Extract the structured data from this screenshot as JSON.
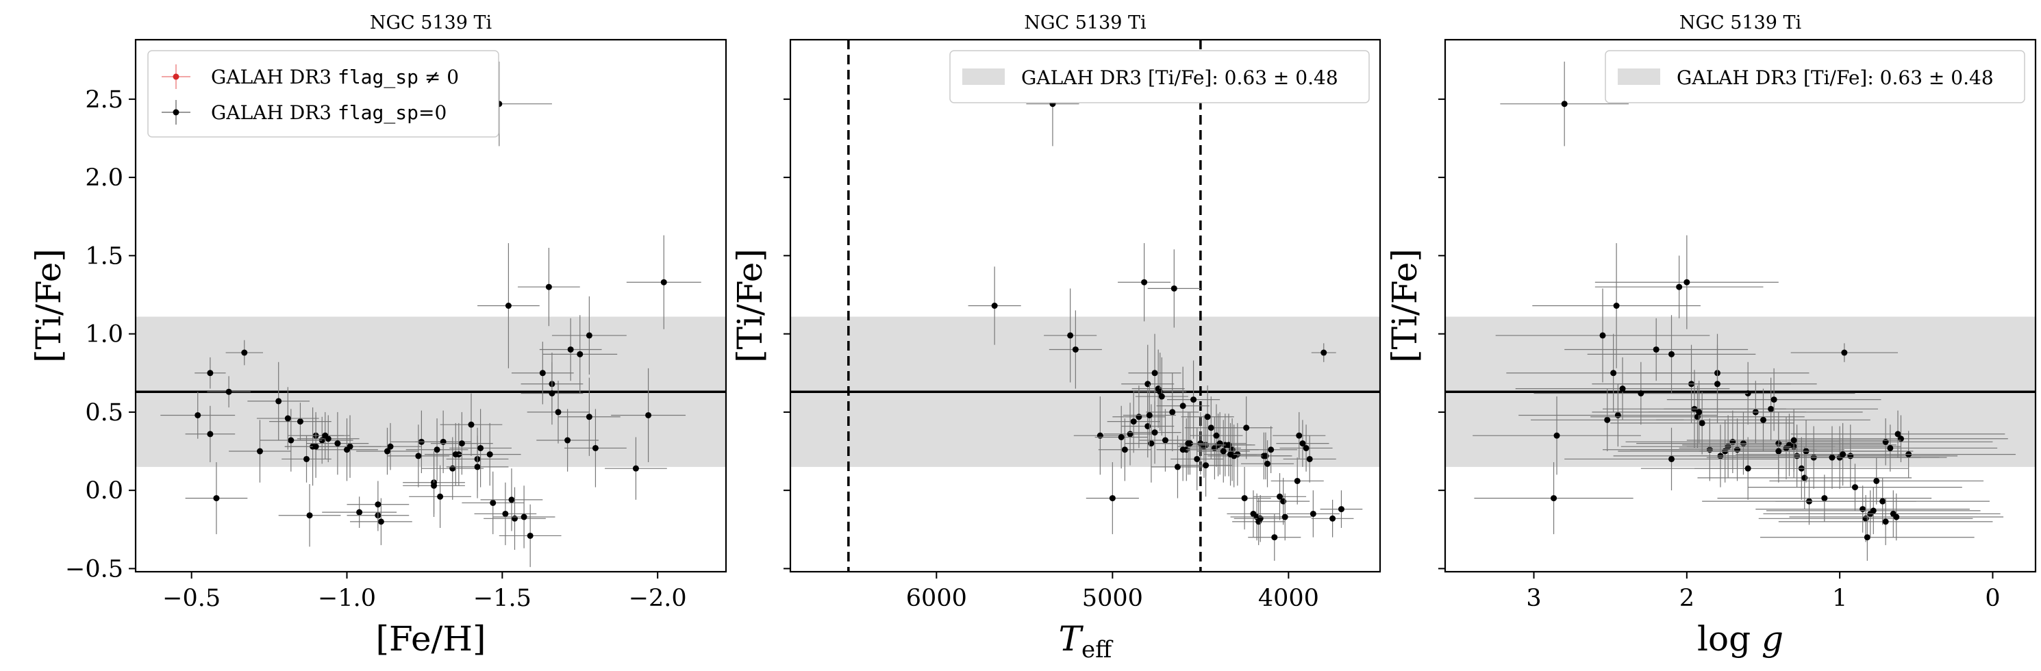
{
  "chart_data": [
    {
      "type": "scatter",
      "title": "NGC 5139 Ti",
      "xlabel": "[Fe/H]",
      "ylabel": "[Ti/Fe]",
      "xlim": [
        -0.32,
        -2.22
      ],
      "ylim": [
        -0.52,
        2.88
      ],
      "xticks": [
        -0.5,
        -1.0,
        -1.5,
        -2.0
      ],
      "xtick_labels": [
        "−0.5",
        "−1.0",
        "−1.5",
        "−2.0"
      ],
      "yticks": [
        -0.5,
        0.0,
        0.5,
        1.0,
        1.5,
        2.0,
        2.5
      ],
      "ytick_labels": [
        "−0.5",
        "0.0",
        "0.5",
        "1.0",
        "1.5",
        "2.0",
        "2.5"
      ],
      "mean": 0.63,
      "std": 0.48,
      "legend_position": "top-left",
      "legend": [
        "GALAH DR3 flag_sp ≠ 0",
        "GALAH DR3 flag_sp=0"
      ],
      "legend_colors": [
        "#d62728",
        "#000000"
      ],
      "series": [
        {
          "name": "GALAH DR3 flag_sp=0",
          "x": [
            -0.67,
            -0.56,
            -0.58,
            -0.62,
            -0.56,
            -0.52,
            -0.85,
            -0.92,
            -0.87,
            -0.94,
            -0.9,
            -0.93,
            -1.01,
            -0.78,
            -0.89,
            -1.0,
            -1.04,
            -1.1,
            -1.11,
            -1.24,
            -1.14,
            -1.13,
            -1.1,
            -1.31,
            -1.4,
            -1.37,
            -1.34,
            -1.28,
            -1.23,
            -1.29,
            -1.28,
            -1.3,
            -1.36,
            -1.35,
            -1.42,
            -1.46,
            -1.42,
            -1.47,
            -1.51,
            -1.59,
            -1.53,
            -1.54,
            -1.57,
            -1.66,
            -1.63,
            -1.66,
            -1.68,
            -1.71,
            -1.72,
            -1.78,
            -1.8,
            -1.93,
            -1.97,
            -2.02,
            -1.75,
            -1.78,
            -1.65,
            -1.52,
            -1.49,
            -1.43,
            -0.82,
            -0.72,
            -0.9,
            -0.97,
            -0.81,
            -0.88
          ],
          "y": [
            0.88,
            0.75,
            -0.05,
            0.63,
            0.36,
            0.48,
            0.44,
            0.32,
            0.2,
            0.33,
            0.35,
            0.35,
            0.28,
            0.57,
            0.28,
            0.26,
            -0.14,
            -0.16,
            -0.2,
            0.31,
            0.28,
            0.25,
            -0.09,
            0.31,
            0.42,
            0.3,
            0.14,
            0.05,
            0.22,
            0.26,
            0.03,
            -0.04,
            0.23,
            0.23,
            0.2,
            0.23,
            0.15,
            -0.08,
            -0.15,
            -0.29,
            -0.06,
            -0.18,
            -0.17,
            0.68,
            0.75,
            0.62,
            0.5,
            0.32,
            0.9,
            0.47,
            0.27,
            0.14,
            0.48,
            1.33,
            0.87,
            0.99,
            1.3,
            1.18,
            2.47,
            0.27,
            0.32,
            0.25,
            0.28,
            0.3,
            0.46,
            -0.16
          ],
          "xerr": [
            0.06,
            0.05,
            0.1,
            0.07,
            0.08,
            0.12,
            0.1,
            0.1,
            0.08,
            0.1,
            0.09,
            0.08,
            0.1,
            0.1,
            0.09,
            0.1,
            0.12,
            0.1,
            0.1,
            0.1,
            0.1,
            0.1,
            0.1,
            0.09,
            0.1,
            0.1,
            0.1,
            0.1,
            0.1,
            0.1,
            0.1,
            0.1,
            0.1,
            0.1,
            0.1,
            0.1,
            0.1,
            0.1,
            0.1,
            0.1,
            0.1,
            0.1,
            0.1,
            0.1,
            0.1,
            0.1,
            0.1,
            0.1,
            0.1,
            0.1,
            0.1,
            0.1,
            0.12,
            0.12,
            0.12,
            0.12,
            0.1,
            0.1,
            0.17,
            0.1,
            0.1,
            0.1,
            0.1,
            0.1,
            0.1,
            0.1
          ],
          "yerr": [
            0.08,
            0.1,
            0.23,
            0.1,
            0.18,
            0.15,
            0.12,
            0.15,
            0.15,
            0.15,
            0.15,
            0.15,
            0.2,
            0.25,
            0.25,
            0.2,
            0.1,
            0.1,
            0.15,
            0.2,
            0.15,
            0.15,
            0.15,
            0.2,
            0.2,
            0.2,
            0.2,
            0.2,
            0.2,
            0.2,
            0.2,
            0.2,
            0.2,
            0.2,
            0.2,
            0.2,
            0.2,
            0.2,
            0.2,
            0.2,
            0.2,
            0.2,
            0.2,
            0.2,
            0.2,
            0.2,
            0.2,
            0.2,
            0.2,
            0.25,
            0.25,
            0.2,
            0.3,
            0.3,
            0.25,
            0.25,
            0.25,
            0.4,
            0.27,
            0.25,
            0.2,
            0.2,
            0.2,
            0.2,
            0.2,
            0.2
          ],
          "color": "#000000"
        },
        {
          "name": "GALAH DR3 flag_sp ≠ 0",
          "x": [],
          "y": [],
          "color": "#d62728"
        }
      ]
    },
    {
      "type": "scatter",
      "title": "NGC 5139 Ti",
      "xlabel": "T_eff",
      "ylabel": "[Ti/Fe]",
      "xlim": [
        6830,
        3480
      ],
      "ylim": [
        -0.52,
        2.88
      ],
      "xticks": [
        6000,
        5000,
        4000
      ],
      "xtick_labels": [
        "6000",
        "5000",
        "4000"
      ],
      "yticks": [
        -0.5,
        0.0,
        0.5,
        1.0,
        1.5,
        2.0,
        2.5
      ],
      "vlines": [
        6500,
        4500
      ],
      "mean": 0.63,
      "std": 0.48,
      "legend_position": "top-right",
      "legend": [
        "GALAH DR3 [Ti/Fe]: 0.63 ± 0.48"
      ],
      "legend_colors": [
        "#dddddd"
      ],
      "series": [
        {
          "name": "GALAH DR3 flag_sp=0",
          "x": [
            5670,
            5340,
            5240,
            5210,
            5070,
            5000,
            4820,
            4800,
            4800,
            4780,
            4760,
            4740,
            4730,
            4720,
            4660,
            4650,
            4600,
            4540,
            4500,
            4480,
            4470,
            4460,
            4440,
            4420,
            4400,
            4390,
            4360,
            4340,
            4320,
            4290,
            4250,
            4240,
            4200,
            4180,
            4170,
            4160,
            4140,
            4130,
            4120,
            4100,
            4080,
            4050,
            4030,
            4020,
            3950,
            3940,
            3920,
            3900,
            3880,
            3860,
            3800,
            3750,
            3700,
            4850,
            4880,
            4900,
            4930,
            4700,
            4630,
            4580,
            4560,
            4520,
            4470,
            4410,
            4310,
            4330,
            4370,
            4950,
            4790,
            4570,
            4600,
            4760
          ],
          "y": [
            1.18,
            2.47,
            0.99,
            0.9,
            0.35,
            -0.05,
            1.33,
            0.68,
            0.41,
            0.3,
            0.75,
            0.65,
            0.63,
            0.6,
            0.5,
            1.29,
            0.54,
            0.58,
            0.3,
            0.28,
            0.29,
            0.47,
            0.4,
            0.27,
            0.29,
            0.3,
            0.29,
            0.29,
            0.26,
            0.23,
            -0.05,
            0.4,
            -0.15,
            -0.17,
            -0.2,
            -0.18,
            0.22,
            0.22,
            0.17,
            0.26,
            -0.3,
            -0.04,
            -0.07,
            -0.17,
            0.06,
            0.35,
            0.3,
            0.27,
            0.2,
            -0.15,
            0.88,
            -0.18,
            -0.12,
            0.47,
            0.44,
            0.36,
            0.26,
            0.32,
            0.15,
            0.26,
            0.3,
            0.2,
            0.16,
            0.35,
            0.22,
            0.23,
            0.25,
            0.34,
            0.48,
            0.3,
            0.26,
            0.37
          ],
          "xerr": [
            150,
            150,
            150,
            150,
            150,
            150,
            150,
            150,
            150,
            150,
            150,
            150,
            150,
            150,
            150,
            150,
            150,
            150,
            150,
            150,
            150,
            150,
            150,
            150,
            150,
            150,
            150,
            150,
            150,
            150,
            150,
            150,
            150,
            150,
            150,
            150,
            150,
            150,
            150,
            150,
            150,
            150,
            150,
            150,
            150,
            150,
            150,
            150,
            150,
            150,
            70,
            120,
            120,
            150,
            150,
            150,
            150,
            150,
            150,
            150,
            150,
            150,
            150,
            150,
            150,
            150,
            150,
            150,
            150,
            150,
            150,
            150
          ],
          "yerr": [
            0.25,
            0.27,
            0.3,
            0.25,
            0.25,
            0.23,
            0.25,
            0.25,
            0.2,
            0.25,
            0.25,
            0.25,
            0.25,
            0.25,
            0.25,
            0.25,
            0.25,
            0.25,
            0.2,
            0.2,
            0.2,
            0.2,
            0.2,
            0.2,
            0.2,
            0.2,
            0.2,
            0.2,
            0.2,
            0.2,
            0.2,
            0.2,
            0.15,
            0.15,
            0.15,
            0.15,
            0.15,
            0.15,
            0.15,
            0.15,
            0.15,
            0.15,
            0.15,
            0.15,
            0.15,
            0.15,
            0.15,
            0.15,
            0.15,
            0.15,
            0.06,
            0.12,
            0.12,
            0.2,
            0.2,
            0.2,
            0.2,
            0.2,
            0.2,
            0.2,
            0.2,
            0.2,
            0.2,
            0.2,
            0.2,
            0.2,
            0.2,
            0.2,
            0.2,
            0.2,
            0.2,
            0.2
          ],
          "color": "#000000"
        }
      ]
    },
    {
      "type": "scatter",
      "title": "NGC 5139 Ti",
      "xlabel": "log g",
      "ylabel": "[Ti/Fe]",
      "xlim": [
        3.58,
        -0.28
      ],
      "ylim": [
        -0.52,
        2.88
      ],
      "xticks": [
        3,
        2,
        1,
        0
      ],
      "xtick_labels": [
        "3",
        "2",
        "1",
        "0"
      ],
      "yticks": [
        -0.5,
        0.0,
        0.5,
        1.0,
        1.5,
        2.0,
        2.5
      ],
      "mean": 0.63,
      "std": 0.48,
      "legend_position": "top-right",
      "legend": [
        "GALAH DR3 [Ti/Fe]: 0.63 ± 0.48"
      ],
      "legend_colors": [
        "#dddddd"
      ],
      "series": [
        {
          "name": "GALAH DR3 flag_sp=0",
          "x": [
            2.8,
            2.85,
            2.87,
            2.55,
            2.52,
            2.48,
            2.46,
            2.45,
            2.2,
            2.05,
            2.0,
            2.1,
            1.97,
            1.95,
            1.93,
            1.9,
            1.85,
            1.8,
            1.8,
            1.78,
            1.75,
            1.73,
            1.7,
            1.67,
            1.63,
            1.6,
            1.55,
            1.5,
            1.45,
            1.43,
            1.4,
            1.35,
            1.33,
            1.3,
            1.28,
            1.25,
            1.23,
            1.22,
            1.2,
            1.17,
            1.1,
            1.0,
            0.97,
            0.93,
            0.9,
            0.85,
            0.83,
            0.82,
            0.8,
            0.78,
            0.76,
            0.72,
            0.7,
            0.65,
            0.63,
            0.62,
            0.6,
            0.55,
            0.67,
            0.7,
            1.3,
            1.4,
            1.6,
            1.92,
            2.1,
            2.3,
            2.42,
            1.05,
            0.98
          ],
          "y": [
            2.47,
            0.35,
            -0.05,
            0.99,
            0.45,
            0.75,
            1.18,
            0.48,
            0.9,
            1.3,
            1.33,
            0.87,
            0.68,
            0.52,
            0.47,
            0.43,
            0.26,
            0.75,
            0.68,
            0.22,
            0.25,
            0.28,
            0.31,
            0.26,
            0.3,
            0.62,
            0.5,
            0.45,
            0.52,
            0.58,
            0.3,
            0.27,
            0.29,
            0.28,
            0.22,
            0.14,
            0.08,
            0.25,
            -0.07,
            0.21,
            -0.05,
            0.21,
            0.88,
            0.22,
            0.02,
            -0.12,
            -0.18,
            -0.3,
            -0.15,
            -0.13,
            0.06,
            -0.07,
            -0.2,
            -0.15,
            -0.17,
            0.36,
            0.33,
            0.23,
            0.27,
            0.31,
            0.32,
            0.25,
            0.14,
            0.5,
            0.2,
            0.62,
            0.65,
            0.21,
            0.23
          ],
          "xerr": [
            0.42,
            0.55,
            0.52,
            0.7,
            0.5,
            0.7,
            0.55,
            0.65,
            0.6,
            0.55,
            0.6,
            0.55,
            0.65,
            0.6,
            0.7,
            0.6,
            0.7,
            0.6,
            0.65,
            0.7,
            0.7,
            0.7,
            0.7,
            0.7,
            0.7,
            0.7,
            0.7,
            0.7,
            0.7,
            0.7,
            0.7,
            0.7,
            0.7,
            0.7,
            0.7,
            0.7,
            0.7,
            0.7,
            0.7,
            0.7,
            0.7,
            0.7,
            0.35,
            0.7,
            0.7,
            0.7,
            0.7,
            0.7,
            0.7,
            0.7,
            0.7,
            0.7,
            0.7,
            0.7,
            0.7,
            0.7,
            0.7,
            0.7,
            0.7,
            0.7,
            0.7,
            0.7,
            0.7,
            0.7,
            0.7,
            0.7,
            0.7,
            0.7,
            0.7
          ],
          "yerr": [
            0.27,
            0.25,
            0.23,
            0.3,
            0.2,
            0.25,
            0.4,
            0.2,
            0.2,
            0.2,
            0.3,
            0.25,
            0.25,
            0.25,
            0.2,
            0.2,
            0.2,
            0.25,
            0.25,
            0.2,
            0.2,
            0.2,
            0.2,
            0.2,
            0.2,
            0.2,
            0.2,
            0.2,
            0.2,
            0.2,
            0.2,
            0.2,
            0.2,
            0.2,
            0.2,
            0.2,
            0.2,
            0.2,
            0.15,
            0.2,
            0.15,
            0.2,
            0.06,
            0.2,
            0.15,
            0.15,
            0.15,
            0.15,
            0.15,
            0.15,
            0.15,
            0.15,
            0.15,
            0.15,
            0.15,
            0.15,
            0.15,
            0.15,
            0.15,
            0.15,
            0.2,
            0.2,
            0.2,
            0.2,
            0.2,
            0.2,
            0.2,
            0.2,
            0.2
          ],
          "color": "#000000"
        }
      ]
    }
  ]
}
